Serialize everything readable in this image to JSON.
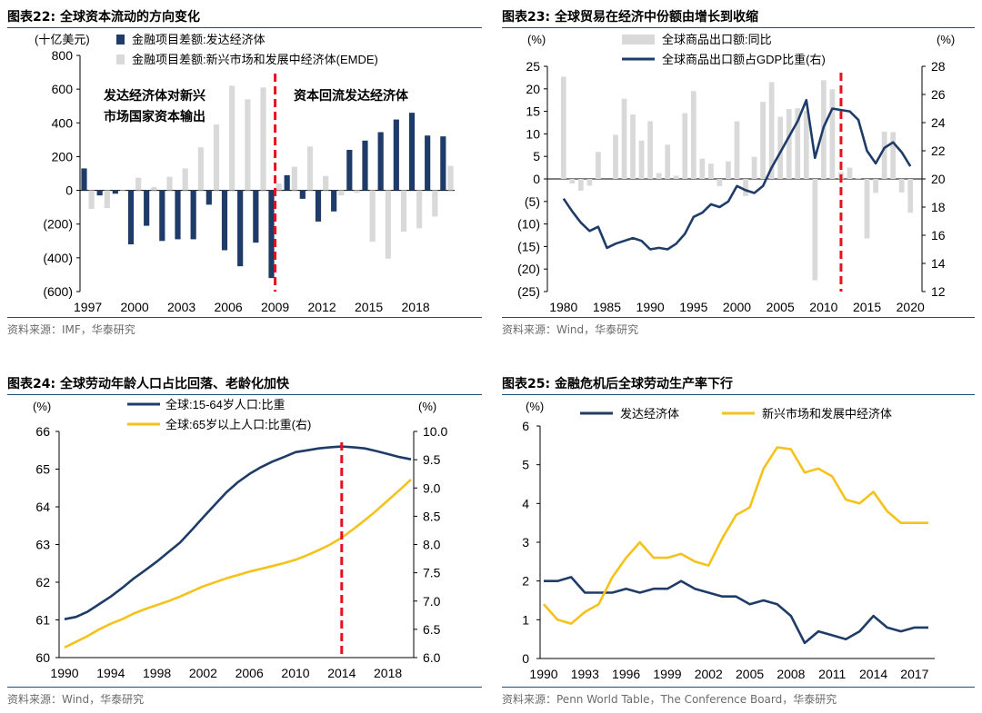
{
  "panels": {
    "p22": {
      "title": "图表22:  全球资本流动的方向变化",
      "source": "资料来源：IMF，华泰研究"
    },
    "p23": {
      "title": "图表23:  全球贸易在经济中份额由增长到收缩",
      "source": "资料来源：Wind，华泰研究"
    },
    "p24": {
      "title": "图表24:  全球劳动年龄人口占比回落、老龄化加快",
      "source": "资料来源：Wind，华泰研究"
    },
    "p25": {
      "title": "图表25:  金融危机后全球劳动生产率下行",
      "source": "资料来源：Penn World Table，The Conference Board，华泰研究"
    }
  },
  "chart_data": [
    {
      "id": "p22",
      "type": "bar",
      "ylabel": "(十亿美元)",
      "ylim": [
        -600,
        800
      ],
      "yticks": [
        "800",
        "600",
        "400",
        "200",
        "0",
        "(200)",
        "(400)",
        "(600)"
      ],
      "ytick_values": [
        800,
        600,
        400,
        200,
        0,
        -200,
        -400,
        -600
      ],
      "x": [
        1997,
        1998,
        1999,
        2000,
        2001,
        2002,
        2003,
        2004,
        2005,
        2006,
        2007,
        2008,
        2009,
        2010,
        2011,
        2012,
        2013,
        2014,
        2015,
        2016,
        2017,
        2018,
        2019,
        2020
      ],
      "xticks": [
        "1997",
        "2000",
        "2003",
        "2006",
        "2009",
        "2012",
        "2015",
        "2018"
      ],
      "xtick_values": [
        1997,
        2000,
        2003,
        2006,
        2009,
        2012,
        2015,
        2018
      ],
      "series": [
        {
          "name": "金融项目差额:发达经济体",
          "color": "#1f3c68",
          "values": [
            130,
            -30,
            -20,
            -320,
            -210,
            -300,
            -290,
            -290,
            -85,
            -355,
            -450,
            -310,
            -520,
            90,
            -50,
            -185,
            -125,
            240,
            295,
            345,
            420,
            460,
            325,
            320
          ]
        },
        {
          "name": "金融项目差额:新兴市场和发展中经济体(EMDE)",
          "color": "#d9d9d9",
          "values": [
            -110,
            -105,
            -5,
            75,
            20,
            80,
            130,
            255,
            390,
            620,
            540,
            610,
            40,
            140,
            260,
            85,
            -30,
            -15,
            -305,
            -405,
            -245,
            -225,
            -155,
            145
          ]
        }
      ],
      "annotations": [
        "发达经济体对新兴",
        "市场国家资本输出",
        "资本回流发达经济体"
      ],
      "marker_x": 2009,
      "marker_color": "#e8101a"
    },
    {
      "id": "p23",
      "type": "bar+line",
      "ylabel_left": "(%)",
      "ylabel_right": "(%)",
      "ylim_left": [
        -25,
        25
      ],
      "ylim_right": [
        12,
        28
      ],
      "yticks_left": [
        "25",
        "20",
        "15",
        "10",
        "5",
        "0",
        "(5)",
        "(10)",
        "(15)",
        "(20)",
        "(25)"
      ],
      "ytick_values_left": [
        25,
        20,
        15,
        10,
        5,
        0,
        -5,
        -10,
        -15,
        -20,
        -25
      ],
      "yticks_right": [
        "28",
        "26",
        "24",
        "22",
        "20",
        "18",
        "16",
        "14",
        "12"
      ],
      "ytick_values_right": [
        28,
        26,
        24,
        22,
        20,
        18,
        16,
        14,
        12
      ],
      "xticks": [
        "1980",
        "1985",
        "1990",
        "1995",
        "2000",
        "2005",
        "2010",
        "2015",
        "2020"
      ],
      "xtick_values": [
        1980,
        1985,
        1990,
        1995,
        2000,
        2005,
        2010,
        2015,
        2020
      ],
      "x": [
        1980,
        1981,
        1982,
        1983,
        1984,
        1985,
        1986,
        1987,
        1988,
        1989,
        1990,
        1991,
        1992,
        1993,
        1994,
        1995,
        1996,
        1997,
        1998,
        1999,
        2000,
        2001,
        2002,
        2003,
        2004,
        2005,
        2006,
        2007,
        2008,
        2009,
        2010,
        2011,
        2012,
        2013,
        2014,
        2015,
        2016,
        2017,
        2018,
        2019,
        2020
      ],
      "series": [
        {
          "name": "全球商品出口额:同比",
          "color": "#d9d9d9",
          "values": [
            22.7,
            -1,
            -2.6,
            -1.5,
            6,
            0,
            9.8,
            17.8,
            14.3,
            8.5,
            12.8,
            1.3,
            7.6,
            0.7,
            14.6,
            19.5,
            4.5,
            3.4,
            -1.6,
            3.9,
            12.8,
            -3.8,
            4.9,
            17.1,
            21.5,
            13.8,
            15.5,
            15.7,
            15.1,
            -22.5,
            21.9,
            19.9,
            1.5,
            2.5,
            0.2,
            -13.2,
            -3.1,
            10.5,
            10.4,
            -3,
            -7.5
          ]
        },
        {
          "name": "全球商品出口额占GDP比重(右)",
          "color": "#1f3c68",
          "x": [
            1980,
            1981,
            1982,
            1983,
            1984,
            1985,
            1986,
            1987,
            1988,
            1989,
            1990,
            1991,
            1992,
            1993,
            1994,
            1995,
            1996,
            1997,
            1998,
            1999,
            2000,
            2001,
            2002,
            2003,
            2004,
            2005,
            2006,
            2007,
            2008,
            2009,
            2010,
            2011,
            2012,
            2013,
            2014,
            2015,
            2016,
            2017,
            2018,
            2019,
            2020
          ],
          "values": [
            18.6,
            17.7,
            16.9,
            16.3,
            16.6,
            15.1,
            15.4,
            15.6,
            15.8,
            15.6,
            15.0,
            15.1,
            15.0,
            15.4,
            16.1,
            17.3,
            17.6,
            18.2,
            18.0,
            18.4,
            19.5,
            19.2,
            19.0,
            19.5,
            20.8,
            21.9,
            23.0,
            24.1,
            25.6,
            21.5,
            23.7,
            25.0,
            24.9,
            24.8,
            24.2,
            22.0,
            21.1,
            22.2,
            22.6,
            21.9,
            20.9
          ]
        }
      ],
      "marker_x": 2012,
      "marker_color": "#e8101a"
    },
    {
      "id": "p24",
      "type": "line",
      "ylabel_left": "(%)",
      "ylabel_right": "(%)",
      "ylim_left": [
        60,
        66
      ],
      "ylim_right": [
        6.0,
        10.0
      ],
      "yticks_left": [
        "66",
        "65",
        "64",
        "63",
        "62",
        "61",
        "60"
      ],
      "ytick_values_left": [
        66,
        65,
        64,
        63,
        62,
        61,
        60
      ],
      "yticks_right": [
        "10.0",
        "9.5",
        "9.0",
        "8.5",
        "8.0",
        "7.5",
        "7.0",
        "6.5",
        "6.0"
      ],
      "ytick_values_right": [
        10,
        9.5,
        9,
        8.5,
        8,
        7.5,
        7,
        6.5,
        6
      ],
      "xticks": [
        "1990",
        "1994",
        "1998",
        "2002",
        "2006",
        "2010",
        "2014",
        "2018"
      ],
      "xtick_values": [
        1990,
        1994,
        1998,
        2002,
        2006,
        2010,
        2014,
        2018
      ],
      "series": [
        {
          "name": "全球:15-64岁人口:比重",
          "color": "#1f3c68",
          "x": [
            1990,
            1991,
            1992,
            1993,
            1994,
            1995,
            1996,
            1997,
            1998,
            1999,
            2000,
            2001,
            2002,
            2003,
            2004,
            2005,
            2006,
            2007,
            2008,
            2009,
            2010,
            2011,
            2012,
            2013,
            2014,
            2015,
            2016,
            2017,
            2018,
            2019,
            2020
          ],
          "values": [
            61.02,
            61.08,
            61.22,
            61.42,
            61.62,
            61.85,
            62.1,
            62.32,
            62.55,
            62.8,
            63.05,
            63.38,
            63.72,
            64.05,
            64.38,
            64.65,
            64.87,
            65.05,
            65.2,
            65.32,
            65.45,
            65.5,
            65.55,
            65.58,
            65.6,
            65.58,
            65.55,
            65.48,
            65.4,
            65.32,
            65.26
          ]
        },
        {
          "name": "全球:65岁以上人口:比重(右)",
          "color": "#f5c21b",
          "x": [
            1990,
            1991,
            1992,
            1993,
            1994,
            1995,
            1996,
            1997,
            1998,
            1999,
            2000,
            2001,
            2002,
            2003,
            2004,
            2005,
            2006,
            2007,
            2008,
            2009,
            2010,
            2011,
            2012,
            2013,
            2014,
            2015,
            2016,
            2017,
            2018,
            2019,
            2020
          ],
          "values": [
            6.18,
            6.28,
            6.38,
            6.5,
            6.6,
            6.68,
            6.78,
            6.86,
            6.93,
            7.0,
            7.08,
            7.17,
            7.26,
            7.33,
            7.4,
            7.46,
            7.52,
            7.57,
            7.62,
            7.67,
            7.73,
            7.81,
            7.9,
            8.0,
            8.12,
            8.27,
            8.43,
            8.6,
            8.78,
            8.96,
            9.15
          ]
        }
      ],
      "marker_x": 2014,
      "marker_color": "#e8101a"
    },
    {
      "id": "p25",
      "type": "line",
      "ylabel": "(%)",
      "ylim": [
        0,
        6
      ],
      "yticks": [
        "6",
        "5",
        "4",
        "3",
        "2",
        "1",
        "0"
      ],
      "ytick_values": [
        6,
        5,
        4,
        3,
        2,
        1,
        0
      ],
      "xticks": [
        "1990",
        "1993",
        "1996",
        "1999",
        "2002",
        "2005",
        "2008",
        "2011",
        "2014",
        "2017"
      ],
      "xtick_values": [
        1990,
        1993,
        1996,
        1999,
        2002,
        2005,
        2008,
        2011,
        2014,
        2017
      ],
      "series": [
        {
          "name": "发达经济体",
          "color": "#1f3c68",
          "x": [
            1990,
            1991,
            1992,
            1993,
            1994,
            1995,
            1996,
            1997,
            1998,
            1999,
            2000,
            2001,
            2002,
            2003,
            2004,
            2005,
            2006,
            2007,
            2008,
            2009,
            2010,
            2011,
            2012,
            2013,
            2014,
            2015,
            2016,
            2017,
            2018
          ],
          "values": [
            2.0,
            2.0,
            2.1,
            1.7,
            1.7,
            1.7,
            1.8,
            1.7,
            1.8,
            1.8,
            2.0,
            1.8,
            1.7,
            1.6,
            1.6,
            1.4,
            1.5,
            1.4,
            1.1,
            0.4,
            0.7,
            0.6,
            0.5,
            0.7,
            1.1,
            0.8,
            0.7,
            0.8,
            0.8
          ]
        },
        {
          "name": "新兴市场和发展中经济体",
          "color": "#f5c21b",
          "x": [
            1990,
            1991,
            1992,
            1993,
            1994,
            1995,
            1996,
            1997,
            1998,
            1999,
            2000,
            2001,
            2002,
            2003,
            2004,
            2005,
            2006,
            2007,
            2008,
            2009,
            2010,
            2011,
            2012,
            2013,
            2014,
            2015,
            2016,
            2017,
            2018
          ],
          "values": [
            1.4,
            1.0,
            0.9,
            1.2,
            1.4,
            2.1,
            2.6,
            3.0,
            2.6,
            2.6,
            2.7,
            2.5,
            2.4,
            3.1,
            3.7,
            3.9,
            4.9,
            5.45,
            5.4,
            4.8,
            4.9,
            4.7,
            4.1,
            4.0,
            4.3,
            3.8,
            3.5,
            3.5,
            3.5
          ]
        }
      ]
    }
  ]
}
